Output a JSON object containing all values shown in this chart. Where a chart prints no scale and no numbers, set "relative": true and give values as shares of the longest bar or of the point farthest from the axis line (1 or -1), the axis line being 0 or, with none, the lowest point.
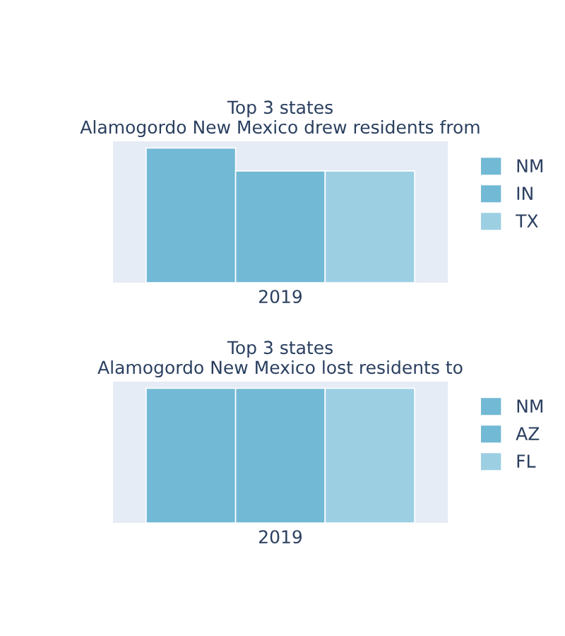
{
  "chart_data": [
    {
      "type": "bar",
      "title": "Top 3 states\nAlamogordo New Mexico drew residents from",
      "categories": [
        null,
        "2019",
        null
      ],
      "stacked": true,
      "relative": true,
      "legend": "right",
      "tick_labels": "x",
      "grid": false,
      "series": [
        {
          "name": "NM",
          "color": "#72b9d5",
          "values": [
            1,
            null,
            null
          ]
        },
        {
          "name": "IN",
          "color": "#72b9d5",
          "values": [
            null,
            0.83,
            null
          ]
        },
        {
          "name": "TX",
          "color": "#9dcfe3",
          "values": [
            null,
            null,
            0.83
          ]
        }
      ]
    },
    {
      "type": "bar",
      "title": "Top 3 states\nAlamogordo New Mexico lost residents to",
      "categories": [
        null,
        "2019",
        null
      ],
      "stacked": true,
      "relative": true,
      "legend": "right",
      "tick_labels": "x",
      "grid": false,
      "series": [
        {
          "name": "NM",
          "color": "#72b9d5",
          "values": [
            1,
            null,
            null
          ]
        },
        {
          "name": "AZ",
          "color": "#72b9d5",
          "values": [
            null,
            1,
            null
          ]
        },
        {
          "name": "FL",
          "color": "#9dcfe3",
          "values": [
            null,
            null,
            1
          ]
        }
      ]
    }
  ]
}
